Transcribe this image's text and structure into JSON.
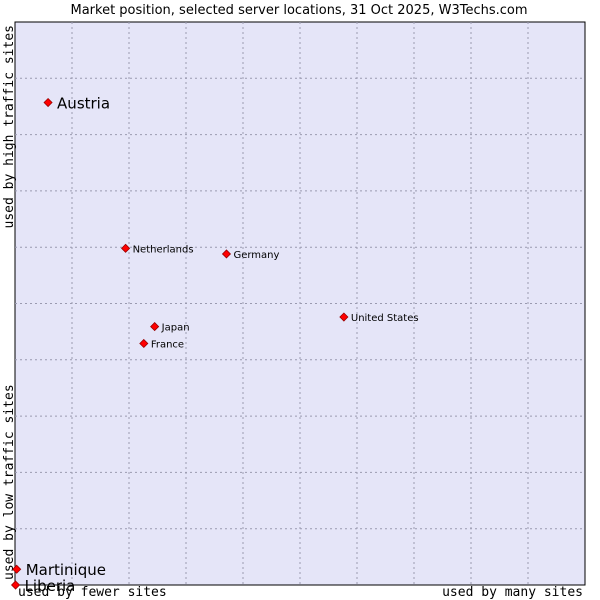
{
  "chart_data": {
    "type": "scatter",
    "title": "Market position, selected server locations, 31 Oct 2025, W3Techs.com",
    "xlabel_low": "used by fewer sites",
    "xlabel_high": "used by many sites",
    "ylabel_low": "used by low traffic sites",
    "ylabel_high": "used by high traffic sites",
    "xlim": [
      0,
      100
    ],
    "ylim": [
      0,
      100
    ],
    "grid": true,
    "point_color": "#ff0000",
    "background_color": "#e5e5f8",
    "points": [
      {
        "name": "Austria",
        "x": 5.8,
        "y": 85.7,
        "size": "large"
      },
      {
        "name": "Netherlands",
        "x": 19.4,
        "y": 59.8,
        "size": "small"
      },
      {
        "name": "Germany",
        "x": 37.1,
        "y": 58.8,
        "size": "small"
      },
      {
        "name": "United States",
        "x": 57.7,
        "y": 47.6,
        "size": "small"
      },
      {
        "name": "Japan",
        "x": 24.5,
        "y": 45.9,
        "size": "small"
      },
      {
        "name": "France",
        "x": 22.6,
        "y": 42.9,
        "size": "small"
      },
      {
        "name": "Martinique",
        "x": 0.3,
        "y": 2.8,
        "size": "large"
      },
      {
        "name": "Liberia",
        "x": 0.1,
        "y": 0.0,
        "size": "large"
      }
    ]
  }
}
